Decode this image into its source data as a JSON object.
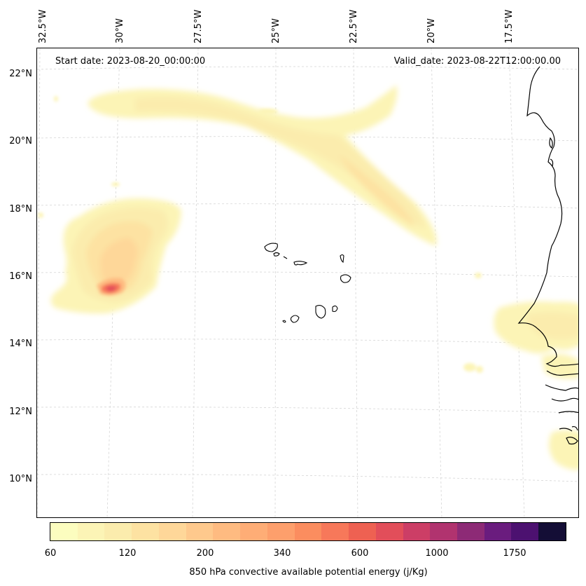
{
  "map": {
    "start_date": "Start date: 2023-08-20_00:00:00",
    "valid_date": "Valid_date: 2023-08-22T12:00:00.00",
    "lon_labels": [
      "32.5°W",
      "30°W",
      "27.5°W",
      "25°W",
      "22.5°W",
      "20°W",
      "17.5°W"
    ],
    "lat_labels": [
      "22°N",
      "20°N",
      "18°N",
      "16°N",
      "14°N",
      "12°N",
      "10°N"
    ],
    "gridlines": true,
    "field_name": "850 hPa convective available potential energy"
  },
  "colorbar": {
    "title": "850 hPa convective available potential energy (j/Kg)",
    "tick_labels": [
      "60",
      "120",
      "200",
      "340",
      "600",
      "1000",
      "1750"
    ],
    "colors": [
      "#fcfdbf",
      "#fcf4b6",
      "#fbecad",
      "#fde2a2",
      "#fed799",
      "#fec98d",
      "#febb81",
      "#fead76",
      "#fd9f6c",
      "#fb8d5f",
      "#f7785a",
      "#ee6152",
      "#e24e5a",
      "#cc3e66",
      "#b1336f",
      "#8d2a76",
      "#6a1c7e",
      "#4c1170",
      "#140e36"
    ]
  }
}
